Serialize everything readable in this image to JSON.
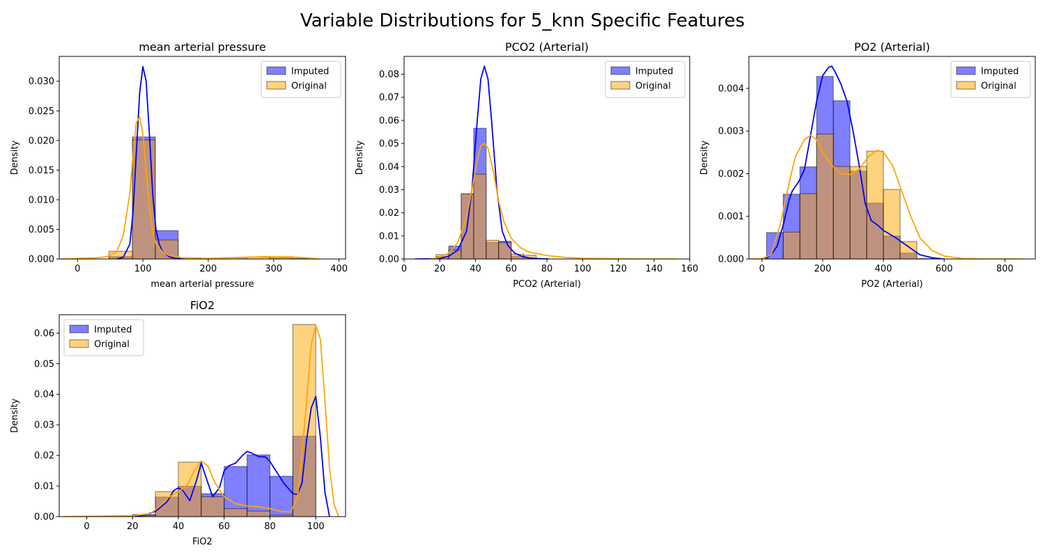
{
  "figure": {
    "title": "Variable Distributions for 5_knn Specific Features"
  },
  "colors": {
    "imputed_fill": "#0000ff",
    "imputed_line": "#0000ff",
    "original_fill": "#ffa500",
    "original_line": "#ffa500",
    "bar_edge": "#000000"
  },
  "chart_data": [
    {
      "type": "histogram",
      "title": "mean arterial pressure",
      "xlabel": "mean arterial pressure",
      "ylabel": "Density",
      "xlim": [
        -28,
        410
      ],
      "ylim": [
        0,
        0.0342
      ],
      "xticks": [
        0,
        100,
        200,
        300,
        400
      ],
      "yticks": [
        0.0,
        0.005,
        0.01,
        0.015,
        0.02,
        0.025,
        0.03
      ],
      "ytick_labels": [
        "0.000",
        "0.005",
        "0.010",
        "0.015",
        "0.020",
        "0.025",
        "0.030"
      ],
      "legend_position": "upper right",
      "bin_edges": [
        48,
        84,
        119,
        154,
        189,
        224,
        259,
        294,
        329,
        364
      ],
      "series": [
        {
          "name": "Imputed",
          "kind": "bar",
          "values": [
            0.0004,
            0.0206,
            0.0048,
            0.0001,
            0.0,
            0.0,
            0.0,
            0.0,
            0.0
          ]
        },
        {
          "name": "Original",
          "kind": "bar",
          "values": [
            0.0013,
            0.0201,
            0.0032,
            0.0002,
            0.0001,
            0.0002,
            0.0003,
            0.0002,
            0.0001
          ]
        },
        {
          "name": "Imputed KDE",
          "kind": "line",
          "x": [
            60,
            70,
            80,
            85,
            90,
            95,
            100,
            105,
            110,
            115,
            120,
            125,
            130,
            140,
            150,
            165
          ],
          "y": [
            0.0,
            0.0003,
            0.0025,
            0.008,
            0.018,
            0.028,
            0.0325,
            0.03,
            0.021,
            0.011,
            0.005,
            0.0025,
            0.0013,
            0.0004,
            0.0001,
            0.0
          ]
        },
        {
          "name": "Original KDE",
          "kind": "line",
          "x": [
            -25,
            0,
            30,
            45,
            60,
            70,
            80,
            85,
            90,
            95,
            100,
            105,
            110,
            115,
            120,
            130,
            140,
            160,
            180,
            200,
            230,
            260,
            290,
            320,
            350,
            370
          ],
          "y": [
            0.0,
            0.0001,
            0.0002,
            0.0004,
            0.0012,
            0.004,
            0.011,
            0.018,
            0.023,
            0.024,
            0.021,
            0.015,
            0.0085,
            0.0045,
            0.0025,
            0.0012,
            0.0006,
            0.0002,
            0.0001,
            0.0001,
            0.0002,
            0.0003,
            0.0004,
            0.0004,
            0.0002,
            0.0
          ]
        }
      ]
    },
    {
      "type": "histogram",
      "title": "PCO2 (Arterial)",
      "xlabel": "PCO2 (Arterial)",
      "ylabel": "Density",
      "xlim": [
        0,
        160
      ],
      "ylim": [
        0,
        0.0877
      ],
      "xticks": [
        0,
        20,
        40,
        60,
        80,
        100,
        120,
        140,
        160
      ],
      "yticks": [
        0.0,
        0.01,
        0.02,
        0.03,
        0.04,
        0.05,
        0.06,
        0.07,
        0.08
      ],
      "ytick_labels": [
        "0.00",
        "0.01",
        "0.02",
        "0.03",
        "0.04",
        "0.05",
        "0.06",
        "0.07",
        "0.08"
      ],
      "legend_position": "upper right",
      "bin_edges": [
        18,
        25,
        32,
        39,
        46,
        53,
        60,
        67,
        74,
        81
      ],
      "series": [
        {
          "name": "Imputed",
          "kind": "bar",
          "values": [
            0.0011,
            0.0056,
            0.0282,
            0.0566,
            0.0072,
            0.0077,
            0.0012,
            0.0004,
            0.0001
          ]
        },
        {
          "name": "Original",
          "kind": "bar",
          "values": [
            0.0019,
            0.0039,
            0.0282,
            0.0367,
            0.0081,
            0.0071,
            0.0021,
            0.0016,
            0.0003
          ]
        },
        {
          "name": "Imputed KDE",
          "kind": "line",
          "x": [
            6,
            15,
            20,
            25,
            30,
            35,
            38,
            41,
            43,
            45,
            47,
            49,
            52,
            55,
            58,
            62,
            66,
            70,
            75,
            80
          ],
          "y": [
            0.0,
            0.0001,
            0.0003,
            0.0012,
            0.0038,
            0.012,
            0.03,
            0.06,
            0.078,
            0.0835,
            0.078,
            0.06,
            0.03,
            0.012,
            0.006,
            0.0025,
            0.0012,
            0.0005,
            0.0002,
            0.0
          ]
        },
        {
          "name": "Original KDE",
          "kind": "line",
          "x": [
            15,
            20,
            25,
            30,
            35,
            38,
            41,
            43,
            45,
            47,
            50,
            53,
            56,
            60,
            65,
            70,
            80,
            90,
            100,
            110,
            120,
            135,
            153
          ],
          "y": [
            0.0,
            0.0008,
            0.0025,
            0.007,
            0.018,
            0.03,
            0.043,
            0.049,
            0.05,
            0.048,
            0.038,
            0.025,
            0.016,
            0.009,
            0.005,
            0.003,
            0.0015,
            0.0007,
            0.0003,
            0.0002,
            0.0001,
            0.0,
            0.0
          ]
        }
      ]
    },
    {
      "type": "histogram",
      "title": "PO2 (Arterial)",
      "xlabel": "PO2 (Arterial)",
      "ylabel": "Density",
      "xlim": [
        -43,
        900
      ],
      "ylim": [
        0,
        0.00475
      ],
      "xticks": [
        0,
        200,
        400,
        600,
        800
      ],
      "yticks": [
        0.0,
        0.001,
        0.002,
        0.003,
        0.004
      ],
      "ytick_labels": [
        "0.000",
        "0.001",
        "0.002",
        "0.003",
        "0.004"
      ],
      "legend_position": "upper right",
      "bin_edges": [
        15,
        70,
        125,
        180,
        235,
        290,
        345,
        400,
        455,
        510,
        565
      ],
      "series": [
        {
          "name": "Imputed",
          "kind": "bar",
          "values": [
            0.00062,
            0.00152,
            0.00216,
            0.00428,
            0.00371,
            0.00206,
            0.00131,
            0.00054,
            0.00014,
            1e-05
          ]
        },
        {
          "name": "Original",
          "kind": "bar",
          "values": [
            0.0,
            0.00063,
            0.00153,
            0.00293,
            0.00217,
            0.00217,
            0.00253,
            0.00163,
            0.00041,
            0.0
          ]
        },
        {
          "name": "Imputed KDE",
          "kind": "line",
          "x": [
            10,
            30,
            50,
            70,
            90,
            100,
            120,
            140,
            160,
            180,
            200,
            220,
            230,
            240,
            260,
            280,
            300,
            320,
            340,
            360,
            380,
            400,
            440,
            480,
            520,
            560,
            600
          ],
          "y": [
            0.0,
            0.0001,
            0.0003,
            0.0008,
            0.0014,
            0.0016,
            0.0018,
            0.0021,
            0.0029,
            0.0037,
            0.0043,
            0.0045,
            0.00452,
            0.0044,
            0.0041,
            0.0037,
            0.003,
            0.0022,
            0.0013,
            0.0009,
            0.0008,
            0.00067,
            0.0005,
            0.0003,
            0.0001,
            3e-05,
            0.0
          ]
        },
        {
          "name": "Original KDE",
          "kind": "line",
          "x": [
            -40,
            0,
            30,
            60,
            90,
            110,
            140,
            160,
            180,
            200,
            230,
            260,
            290,
            320,
            350,
            380,
            400,
            430,
            460,
            490,
            520,
            560,
            600,
            660,
            740,
            860
          ],
          "y": [
            0.0,
            1e-05,
            0.0001,
            0.0008,
            0.0018,
            0.0024,
            0.0028,
            0.0029,
            0.0028,
            0.0025,
            0.0022,
            0.002,
            0.00198,
            0.0021,
            0.0024,
            0.00255,
            0.0025,
            0.0022,
            0.0016,
            0.001,
            0.0005,
            0.0002,
            7e-05,
            1e-05,
            0.0,
            0.0
          ]
        }
      ]
    },
    {
      "type": "histogram",
      "title": "FiO2",
      "xlabel": "FiO2",
      "ylabel": "Density",
      "xlim": [
        -12,
        113
      ],
      "ylim": [
        0,
        0.066
      ],
      "xticks": [
        0,
        20,
        40,
        60,
        80,
        100
      ],
      "yticks": [
        0.0,
        0.01,
        0.02,
        0.03,
        0.04,
        0.05,
        0.06
      ],
      "ytick_labels": [
        "0.00",
        "0.01",
        "0.02",
        "0.03",
        "0.04",
        "0.05",
        "0.06"
      ],
      "legend_position": "upper left",
      "bin_edges": [
        0,
        10,
        20,
        30,
        40,
        50,
        60,
        70,
        80,
        90,
        100
      ],
      "series": [
        {
          "name": "Imputed",
          "kind": "bar",
          "values": [
            0.0,
            0.0,
            0.0007,
            0.0064,
            0.0099,
            0.0075,
            0.0164,
            0.0202,
            0.0132,
            0.0263
          ]
        },
        {
          "name": "Original",
          "kind": "bar",
          "values": [
            0.0,
            0.0,
            0.0004,
            0.0082,
            0.0178,
            0.0065,
            0.0026,
            0.0018,
            0.0005,
            0.0628
          ]
        },
        {
          "name": "Imputed KDE",
          "kind": "line",
          "x": [
            20,
            25,
            30,
            35,
            38,
            40,
            42,
            45,
            48,
            50,
            52,
            55,
            58,
            60,
            62,
            65,
            68,
            70,
            72,
            75,
            78,
            80,
            83,
            86,
            90,
            92,
            94,
            96,
            98,
            100,
            102,
            104,
            106
          ],
          "y": [
            0.0,
            0.0004,
            0.0017,
            0.0048,
            0.0085,
            0.0094,
            0.0085,
            0.0052,
            0.012,
            0.0176,
            0.013,
            0.0065,
            0.0095,
            0.015,
            0.0166,
            0.0175,
            0.02,
            0.0213,
            0.0208,
            0.0196,
            0.0195,
            0.018,
            0.0145,
            0.011,
            0.0075,
            0.0072,
            0.011,
            0.025,
            0.0355,
            0.0393,
            0.026,
            0.008,
            0.0
          ]
        },
        {
          "name": "Original KDE",
          "kind": "line",
          "x": [
            -10,
            0,
            10,
            20,
            28,
            32,
            36,
            40,
            44,
            47,
            50,
            53,
            56,
            60,
            65,
            70,
            75,
            80,
            85,
            89,
            92,
            95,
            98,
            100,
            102,
            104,
            106,
            108,
            110
          ],
          "y": [
            0.0,
            0.0001,
            0.0002,
            0.0003,
            0.001,
            0.0035,
            0.0065,
            0.008,
            0.0105,
            0.015,
            0.0182,
            0.0165,
            0.011,
            0.0065,
            0.0042,
            0.0035,
            0.0032,
            0.0026,
            0.0017,
            0.0015,
            0.006,
            0.029,
            0.056,
            0.0625,
            0.058,
            0.038,
            0.016,
            0.004,
            0.0
          ]
        }
      ]
    }
  ]
}
